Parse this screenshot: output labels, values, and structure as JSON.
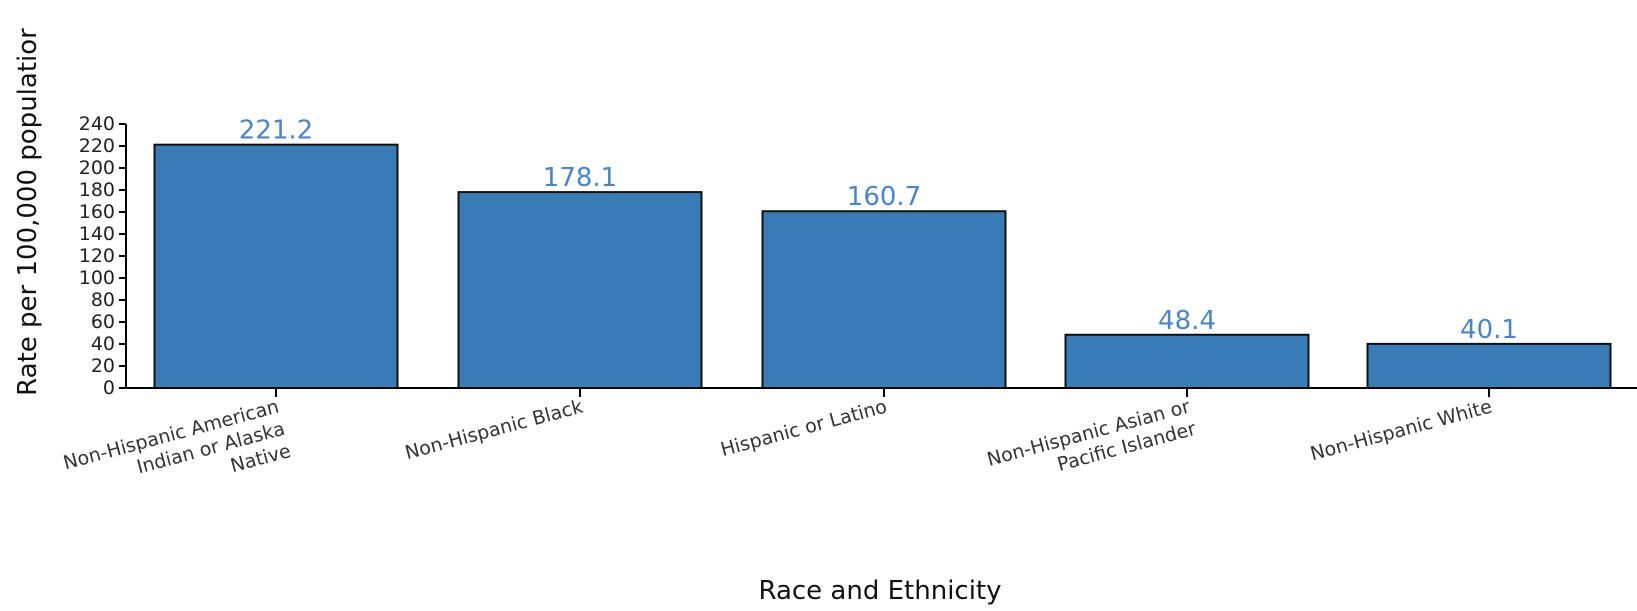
{
  "chart_data": {
    "type": "bar",
    "categories": [
      [
        "Non-Hispanic American",
        "Indian or Alaska",
        "Native"
      ],
      [
        "Non-Hispanic Black"
      ],
      [
        "Hispanic or Latino"
      ],
      [
        "Non-Hispanic Asian or",
        "Pacific Islander"
      ],
      [
        "Non-Hispanic White"
      ]
    ],
    "values": [
      221.2,
      178.1,
      160.7,
      48.4,
      40.1
    ],
    "value_labels": [
      "221.2",
      "178.1",
      "160.7",
      "48.4",
      "40.1"
    ],
    "title": "",
    "xlabel": "Race and Ethnicity",
    "ylabel": "Rate per 100,000 populatior",
    "ylim": [
      0,
      240
    ],
    "yticks": [
      0,
      20,
      40,
      60,
      80,
      100,
      120,
      140,
      160,
      180,
      200,
      220,
      240
    ],
    "grid": false,
    "bar_color": "#3a7db6",
    "label_color": "#4b86c2"
  }
}
